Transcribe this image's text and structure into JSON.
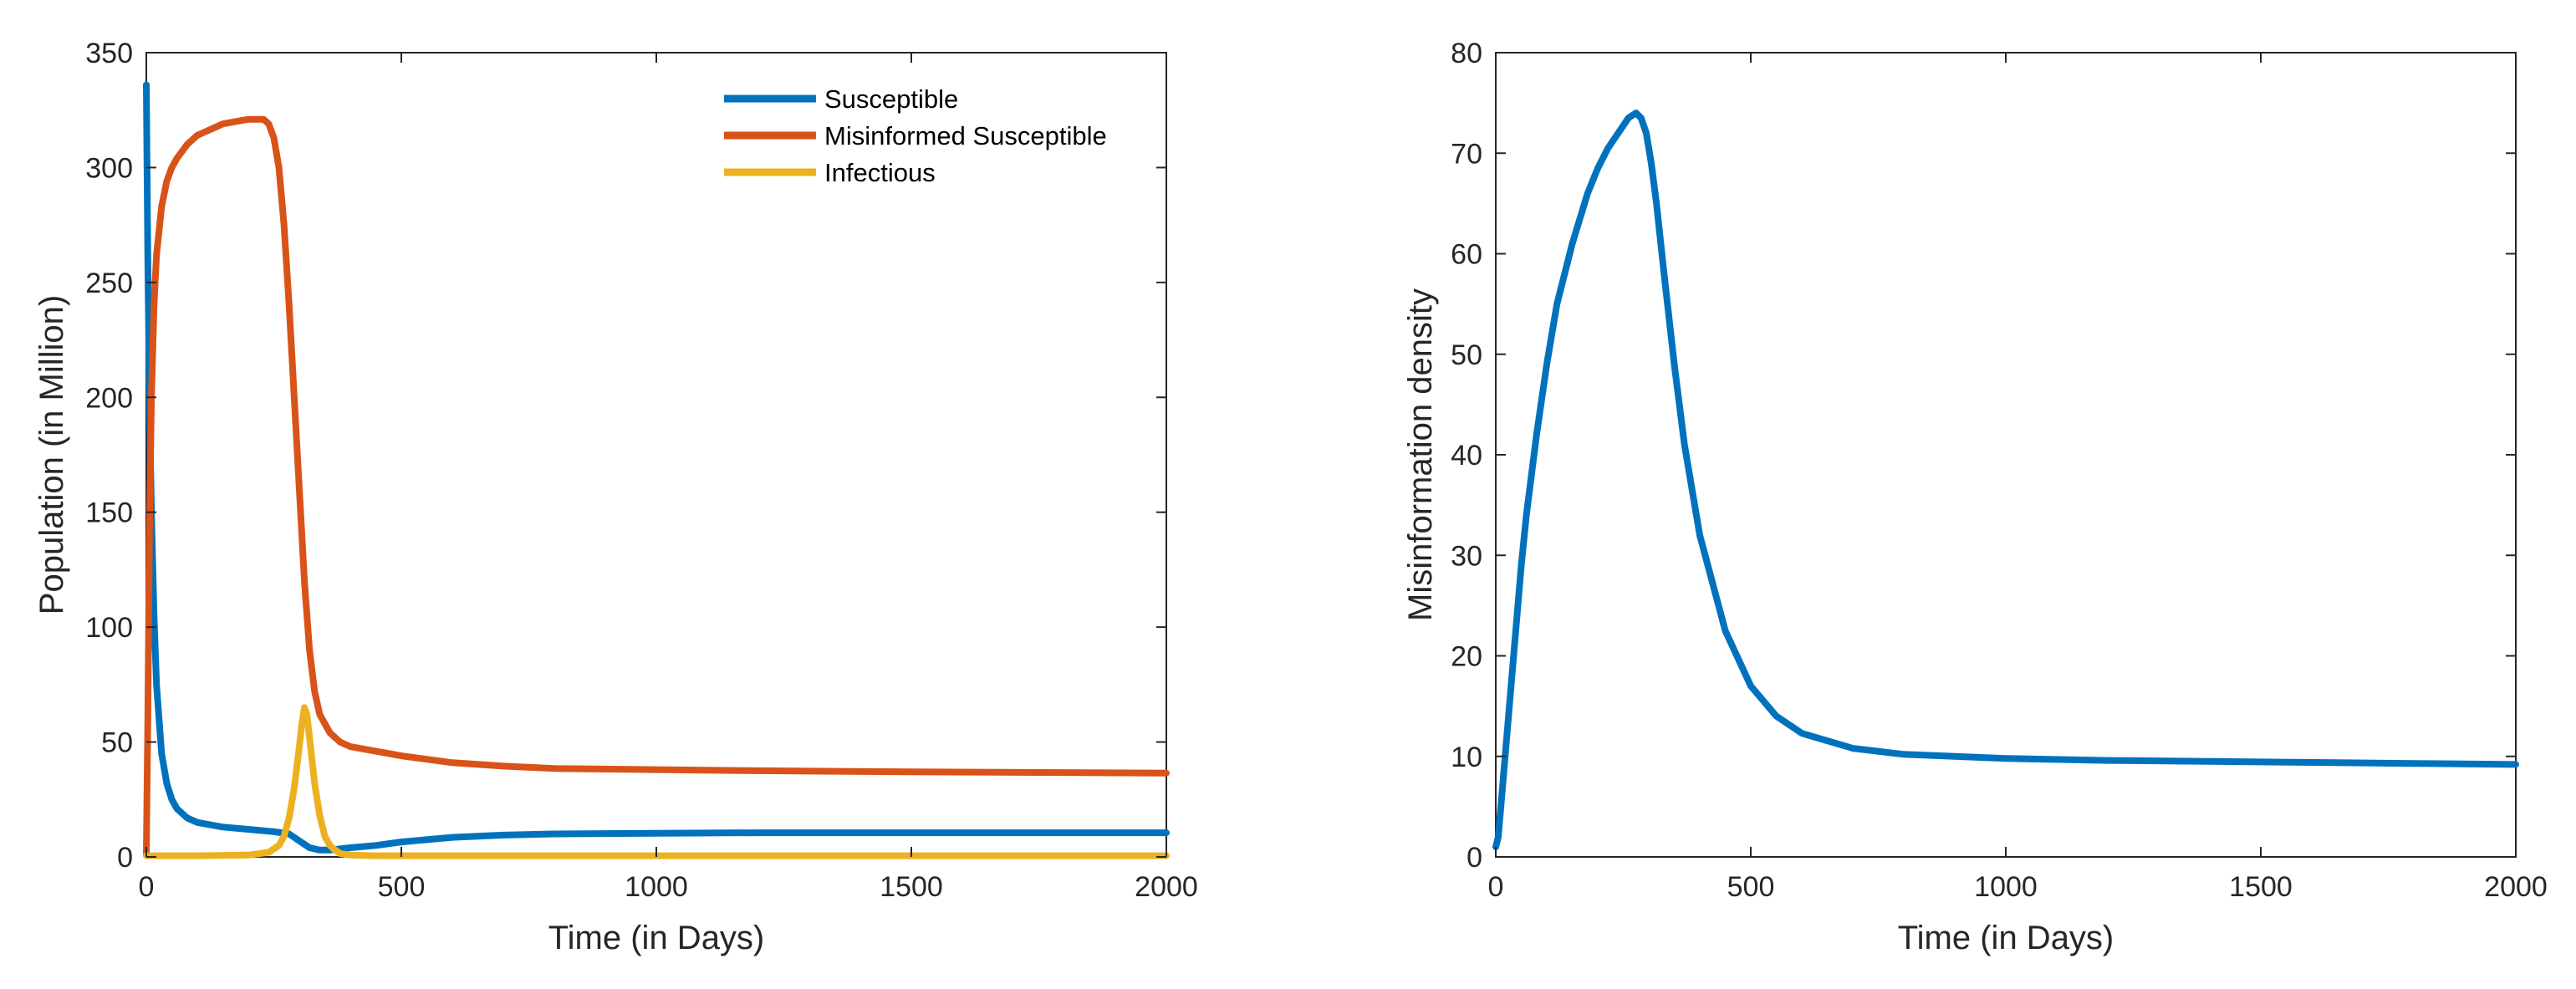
{
  "chart_data": [
    {
      "type": "line",
      "title": "",
      "xlabel": "Time (in Days)",
      "ylabel": "Population (in Million)",
      "xlim": [
        0,
        2000
      ],
      "ylim": [
        0,
        350
      ],
      "xticks": [
        0,
        500,
        1000,
        1500,
        2000
      ],
      "yticks": [
        0,
        50,
        100,
        150,
        200,
        250,
        300,
        350
      ],
      "grid": false,
      "legend_position": "top-right",
      "series": [
        {
          "name": "Susceptible",
          "color": "#0072BD",
          "x": [
            0,
            3,
            6,
            10,
            15,
            20,
            30,
            40,
            50,
            60,
            80,
            100,
            150,
            200,
            250,
            280,
            300,
            320,
            340,
            360,
            400,
            450,
            500,
            600,
            700,
            800,
            1000,
            1200,
            1500,
            2000
          ],
          "y": [
            336,
            260,
            200,
            150,
            105,
            75,
            45,
            32,
            25,
            21,
            17,
            15,
            13,
            12,
            11,
            10,
            7,
            4,
            3,
            3,
            4,
            5,
            6.5,
            8.5,
            9.5,
            10,
            10.3,
            10.5,
            10.5,
            10.5
          ]
        },
        {
          "name": "Misinformed Susceptible",
          "color": "#D95319",
          "x": [
            0,
            3,
            6,
            10,
            15,
            20,
            30,
            40,
            50,
            60,
            70,
            80,
            100,
            150,
            200,
            230,
            240,
            250,
            260,
            270,
            280,
            290,
            300,
            310,
            320,
            330,
            340,
            360,
            380,
            400,
            500,
            600,
            700,
            800,
            1000,
            1200,
            1500,
            2000
          ],
          "y": [
            1,
            60,
            140,
            200,
            240,
            262,
            283,
            294,
            300,
            304,
            307,
            310,
            314,
            319,
            321,
            321,
            319,
            313,
            300,
            275,
            240,
            200,
            160,
            120,
            90,
            72,
            62,
            54,
            50,
            48,
            44,
            41,
            39.5,
            38.5,
            38,
            37.5,
            37,
            36.5
          ]
        },
        {
          "name": "Infectious",
          "color": "#EDB120",
          "x": [
            0,
            100,
            200,
            240,
            260,
            270,
            280,
            290,
            300,
            305,
            310,
            315,
            320,
            330,
            340,
            350,
            360,
            370,
            380,
            400,
            450,
            2000
          ],
          "y": [
            0.5,
            0.5,
            0.8,
            2,
            5,
            9,
            17,
            30,
            48,
            58,
            65,
            62,
            52,
            32,
            18,
            9,
            5,
            3,
            1.5,
            0.8,
            0.5,
            0.5
          ]
        }
      ]
    },
    {
      "type": "line",
      "title": "",
      "xlabel": "Time (in Days)",
      "ylabel": "Misinformation density",
      "xlim": [
        0,
        2000
      ],
      "ylim": [
        0,
        80
      ],
      "xticks": [
        0,
        500,
        1000,
        1500,
        2000
      ],
      "yticks": [
        0,
        10,
        20,
        30,
        40,
        50,
        60,
        70,
        80
      ],
      "grid": false,
      "series": [
        {
          "name": "Misinformation density",
          "color": "#0072BD",
          "x": [
            0,
            5,
            10,
            20,
            30,
            40,
            50,
            60,
            80,
            100,
            120,
            150,
            180,
            200,
            220,
            240,
            260,
            275,
            285,
            295,
            305,
            315,
            330,
            350,
            370,
            400,
            450,
            500,
            550,
            600,
            700,
            800,
            900,
            1000,
            1200,
            1400,
            1600,
            1800,
            2000
          ],
          "y": [
            1,
            2,
            5,
            11,
            17,
            23,
            29,
            34,
            42,
            49,
            55,
            61,
            66,
            68.5,
            70.5,
            72,
            73.5,
            74,
            73.5,
            72,
            69,
            65,
            58,
            49,
            41,
            32,
            22.5,
            17,
            14,
            12.3,
            10.8,
            10.2,
            10,
            9.8,
            9.6,
            9.5,
            9.4,
            9.3,
            9.2
          ]
        }
      ]
    }
  ]
}
